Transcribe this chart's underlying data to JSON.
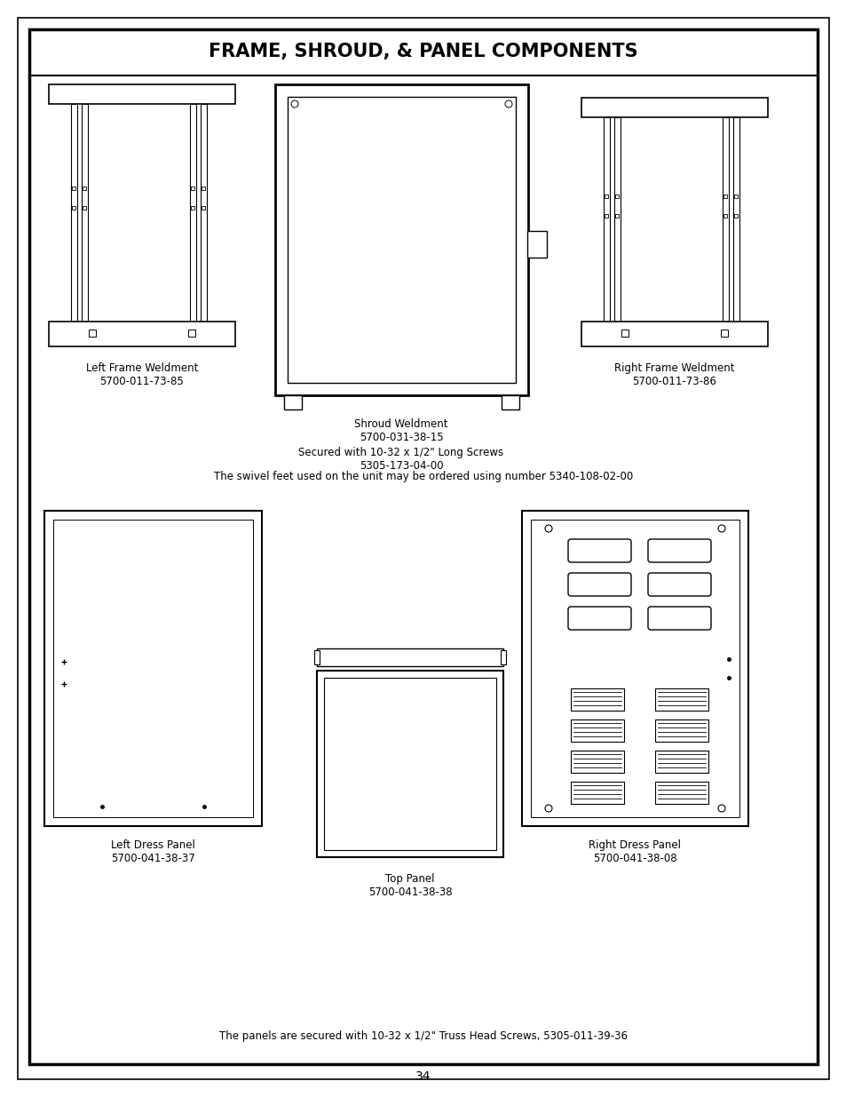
{
  "title": "FRAME, SHROUD, & PANEL COMPONENTS",
  "page_number": "34",
  "background_color": "#ffffff",
  "border_color": "#000000",
  "swivel_note": "The swivel feet used on the unit may be ordered using number 5340-108-02-00",
  "panels_note": "The panels are secured with 10-32 x 1/2\" Truss Head Screws, 5305-011-39-36",
  "left_frame_name": "Left Frame Weldment",
  "left_frame_part": "5700-011-73-85",
  "shroud_name": "Shroud Weldment",
  "shroud_part": "5700-031-38-15",
  "shroud_secured": "Secured with 10-32 x 1/2\" Long Screws",
  "shroud_secured_part": "5305-173-04-00",
  "right_frame_name": "Right Frame Weldment",
  "right_frame_part": "5700-011-73-86",
  "left_dress_name": "Left Dress Panel",
  "left_dress_part": "5700-041-38-37",
  "top_panel_name": "Top Panel",
  "top_panel_part": "5700-041-38-38",
  "right_dress_name": "Right Dress Panel",
  "right_dress_part": "5700-041-38-08"
}
